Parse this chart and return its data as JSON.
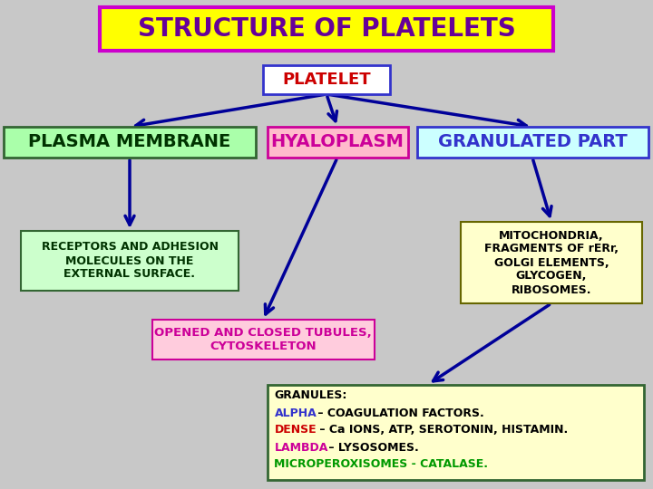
{
  "title": "STRUCTURE OF PLATELETS",
  "title_bg": "#FFFF00",
  "title_border": "#CC00CC",
  "title_color": "#660099",
  "bg_color": "#C8C8C8",
  "platelet_label": "PLATELET",
  "platelet_bg": "white",
  "platelet_border": "#3333CC",
  "platelet_color": "#CC0000",
  "box1_label": "PLASMA MEMBRANE",
  "box1_bg": "#AAFFAA",
  "box1_border": "#336633",
  "box1_color": "#003300",
  "box2_label": "HYALOPLASM",
  "box2_bg": "#FFBBCC",
  "box2_border": "#CC0099",
  "box2_color": "#CC0099",
  "box3_label": "GRANULATED PART",
  "box3_bg": "#CCFFFF",
  "box3_border": "#3333CC",
  "box3_color": "#3333CC",
  "sub1_label": "RECEPTORS AND ADHESION\nMOLECULES ON THE\nEXTERNAL SURFACE.",
  "sub1_bg": "#CCFFCC",
  "sub1_border": "#336633",
  "sub1_color": "#003300",
  "sub2_label": "OPENED AND CLOSED TUBULES,\nCYTOSKELETON",
  "sub2_bg": "#FFCCDD",
  "sub2_border": "#CC0099",
  "sub2_color": "#CC0099",
  "sub3_label": "MITOCHONDRIA,\nFRAGMENTS OF rERr,\nGOLGI ELEMENTS,\nGLYCOGEN,\nRIBOSOMES.",
  "sub3_bg": "#FFFFCC",
  "sub3_border": "#666600",
  "sub3_color": "#000000",
  "granules_bg": "#FFFFCC",
  "granules_border": "#336633",
  "granules_title": "GRANULES:",
  "granules_title_color": "#000000",
  "granules_line1": "ALPHA",
  "granules_line1_color": "#3333CC",
  "granules_line1_rest": " – COAGULATION FACTORS.",
  "granules_line1_rest_color": "#000000",
  "granules_line2": "DENSE",
  "granules_line2_color": "#CC0000",
  "granules_line2_rest": " – Ca IONS, ATP, SEROTONIN, HISTAMIN.",
  "granules_line2_rest_color": "#000000",
  "granules_line3": "LAMBDA",
  "granules_line3_color": "#CC0099",
  "granules_line3_rest": " – LYSOSOMES.",
  "granules_line3_rest_color": "#000000",
  "granules_line4": "MICROPEROXISOMES - CATALASE.",
  "granules_line4_color": "#009900",
  "arrow_color": "#000099"
}
